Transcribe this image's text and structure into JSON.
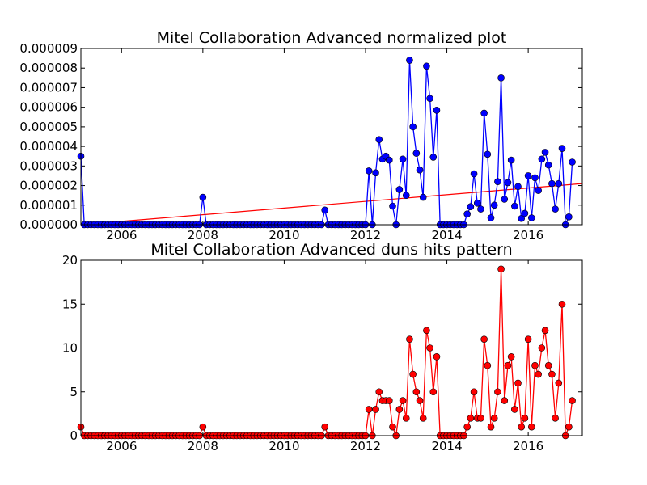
{
  "colors": {
    "series1": "#0000ff",
    "series2": "#ff0000",
    "trend": "#ff0000",
    "axes": "#000000"
  },
  "chart_data": [
    {
      "type": "line",
      "title": "Mitel Collaboration Advanced normalized plot",
      "xlabel": "",
      "ylabel": "",
      "xlim": [
        2005.0,
        2017.33
      ],
      "ylim": [
        0.0,
        9e-06
      ],
      "x_ticks": [
        2006,
        2008,
        2010,
        2012,
        2014,
        2016
      ],
      "x_tick_labels": [
        "2006",
        "2008",
        "2010",
        "2012",
        "2014",
        "2016"
      ],
      "y_ticks": [
        0,
        1e-06,
        2e-06,
        3e-06,
        4e-06,
        5e-06,
        6e-06,
        7e-06,
        8e-06,
        9e-06
      ],
      "y_tick_labels": [
        "0.000000",
        "0.000001",
        "0.000002",
        "0.000003",
        "0.000004",
        "0.000005",
        "0.000006",
        "0.000007",
        "0.000008",
        "0.000009"
      ],
      "marker": "circle",
      "trend_line": {
        "x": [
          2005.0,
          2017.33
        ],
        "y": [
          0.0,
          2.1e-06
        ]
      },
      "series": [
        {
          "x_start": 2005.0,
          "x_step": 0.08333,
          "values": [
            3.5e-06,
            0,
            0,
            0,
            0,
            0,
            0,
            0,
            0,
            0,
            0,
            0,
            0,
            0,
            0,
            0,
            0,
            0,
            0,
            0,
            0,
            0,
            0,
            0,
            0,
            0,
            0,
            0,
            0,
            0,
            0,
            0,
            0,
            0,
            0,
            0,
            1.4e-06,
            0,
            0,
            0,
            0,
            0,
            0,
            0,
            0,
            0,
            0,
            0,
            0,
            0,
            0,
            0,
            0,
            0,
            0,
            0,
            0,
            0,
            0,
            0,
            0,
            0,
            0,
            0,
            0,
            0,
            0,
            0,
            0,
            0,
            0,
            0,
            7.5e-07,
            0,
            0,
            0,
            0,
            0,
            0,
            0,
            0,
            0,
            0,
            0,
            0,
            2.75e-06,
            0,
            2.65e-06,
            4.35e-06,
            3.35e-06,
            3.5e-06,
            3.3e-06,
            9.5e-07,
            0,
            1.8e-06,
            3.35e-06,
            1.5e-06,
            8.4e-06,
            5e-06,
            3.65e-06,
            2.8e-06,
            1.4e-06,
            8.1e-06,
            6.45e-06,
            3.45e-06,
            5.85e-06,
            0,
            0,
            0,
            0,
            0,
            0,
            0,
            0,
            5.5e-07,
            9.2e-07,
            2.6e-06,
            1.1e-06,
            8e-07,
            5.7e-06,
            3.6e-06,
            3.5e-07,
            1e-06,
            2.2e-06,
            7.5e-06,
            1.3e-06,
            2.15e-06,
            3.3e-06,
            9.5e-07,
            1.95e-06,
            3.2e-07,
            5.8e-07,
            2.5e-06,
            3.5e-07,
            2.4e-06,
            1.75e-06,
            3.35e-06,
            3.7e-06,
            3.05e-06,
            2.1e-06,
            8e-07,
            2.1e-06,
            3.9e-06,
            0,
            4e-07,
            3.2e-06
          ]
        }
      ]
    },
    {
      "type": "line",
      "title": "Mitel Collaboration Advanced duns hits pattern",
      "xlabel": "",
      "ylabel": "",
      "xlim": [
        2005.0,
        2017.33
      ],
      "ylim": [
        0,
        20
      ],
      "x_ticks": [
        2006,
        2008,
        2010,
        2012,
        2014,
        2016
      ],
      "x_tick_labels": [
        "2006",
        "2008",
        "2010",
        "2012",
        "2014",
        "2016"
      ],
      "y_ticks": [
        0,
        5,
        10,
        15,
        20
      ],
      "y_tick_labels": [
        "0",
        "5",
        "10",
        "15",
        "20"
      ],
      "marker": "circle",
      "series": [
        {
          "x_start": 2005.0,
          "x_step": 0.08333,
          "values": [
            1,
            0,
            0,
            0,
            0,
            0,
            0,
            0,
            0,
            0,
            0,
            0,
            0,
            0,
            0,
            0,
            0,
            0,
            0,
            0,
            0,
            0,
            0,
            0,
            0,
            0,
            0,
            0,
            0,
            0,
            0,
            0,
            0,
            0,
            0,
            0,
            1,
            0,
            0,
            0,
            0,
            0,
            0,
            0,
            0,
            0,
            0,
            0,
            0,
            0,
            0,
            0,
            0,
            0,
            0,
            0,
            0,
            0,
            0,
            0,
            0,
            0,
            0,
            0,
            0,
            0,
            0,
            0,
            0,
            0,
            0,
            0,
            1,
            0,
            0,
            0,
            0,
            0,
            0,
            0,
            0,
            0,
            0,
            0,
            0,
            3,
            0,
            3,
            5,
            4,
            4,
            4,
            1,
            0,
            3,
            4,
            2,
            11,
            7,
            5,
            4,
            2,
            12,
            10,
            5,
            9,
            0,
            0,
            0,
            0,
            0,
            0,
            0,
            0,
            1,
            2,
            5,
            2,
            2,
            11,
            8,
            1,
            2,
            5,
            19,
            4,
            8,
            9,
            3,
            6,
            1,
            2,
            11,
            1,
            8,
            7,
            10,
            12,
            8,
            7,
            2,
            6,
            15,
            0,
            1,
            4
          ]
        }
      ]
    }
  ]
}
